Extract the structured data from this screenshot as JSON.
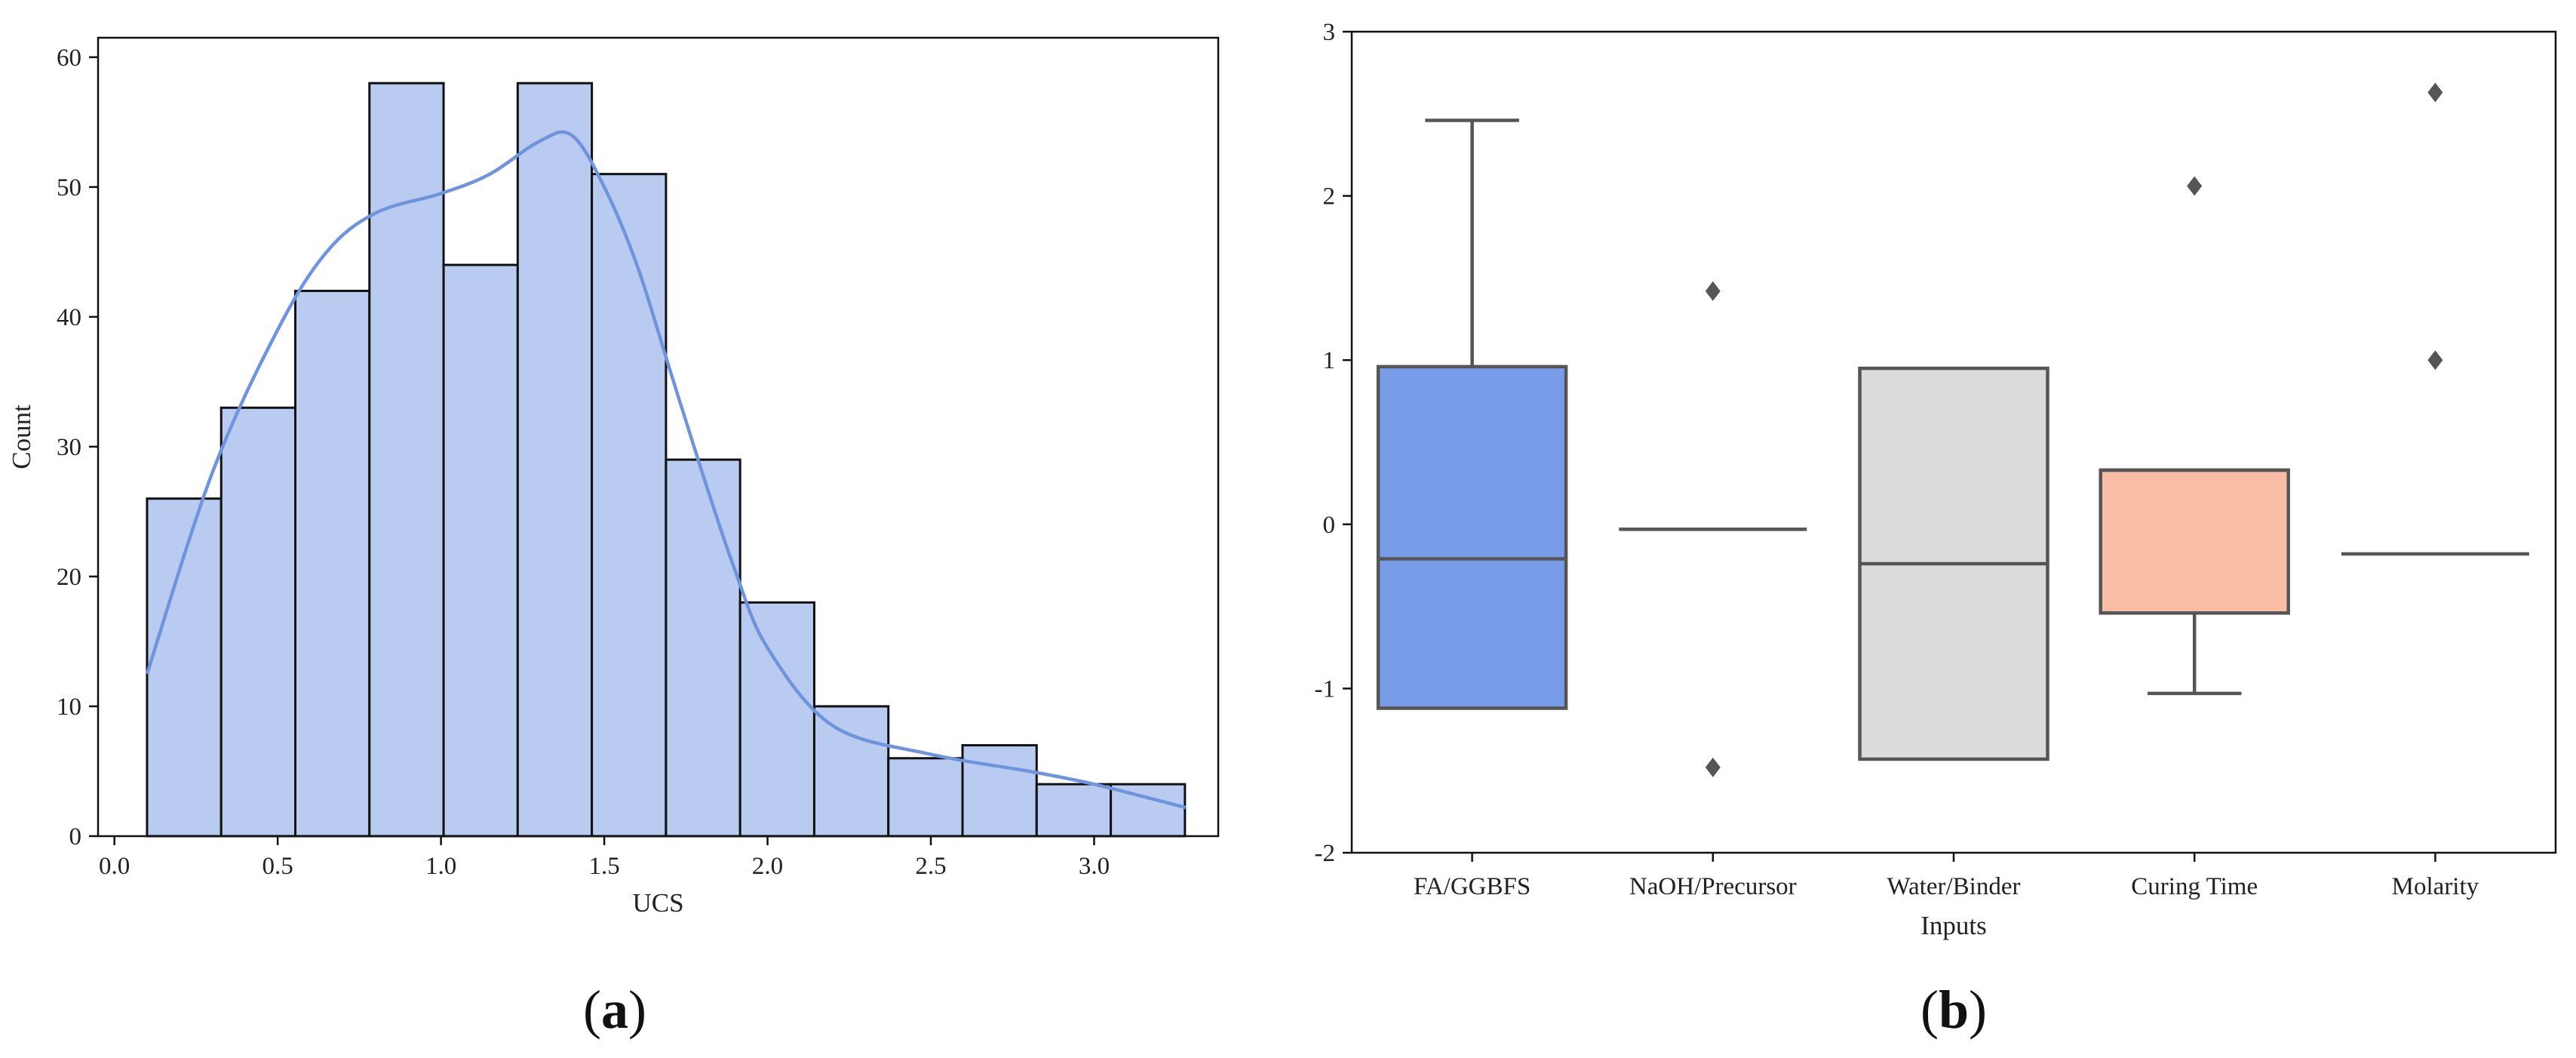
{
  "chart_data": [
    {
      "type": "bar",
      "subtype": "histogram-with-kde",
      "panel_label": {
        "open": "(",
        "letter": "a",
        "close": ")"
      },
      "xlabel": "UCS",
      "ylabel": "Count",
      "xlim": [
        -0.05,
        3.38
      ],
      "ylim": [
        0,
        61.5
      ],
      "xticks": [
        0.0,
        0.5,
        1.0,
        1.5,
        2.0,
        2.5,
        3.0
      ],
      "xtick_labels": [
        "0.0",
        "0.5",
        "1.0",
        "1.5",
        "2.0",
        "2.5",
        "3.0"
      ],
      "yticks": [
        0,
        10,
        20,
        30,
        40,
        50,
        60
      ],
      "ytick_labels": [
        "0",
        "10",
        "20",
        "30",
        "40",
        "50",
        "60"
      ],
      "bin_start": 0.1,
      "bin_width": 0.227,
      "values": [
        26,
        33,
        42,
        58,
        44,
        58,
        51,
        29,
        18,
        10,
        6,
        7,
        4,
        4
      ],
      "kde": {
        "x": [
          0.1,
          0.3,
          0.5,
          0.65,
          0.8,
          1.0,
          1.15,
          1.3,
          1.4,
          1.5,
          1.6,
          1.7,
          1.8,
          1.9,
          2.0,
          2.2,
          2.5,
          2.8,
          3.0,
          3.28
        ],
        "y": [
          12.5,
          28,
          39,
          45,
          48,
          49.5,
          51,
          53.5,
          54,
          50,
          44,
          36,
          28,
          20.5,
          14.5,
          8.5,
          6.3,
          5,
          4,
          2.2
        ]
      },
      "colors": {
        "bar": "#b9cbf0",
        "edge": "#111111",
        "kde": "#7094dc"
      },
      "grid": false
    },
    {
      "type": "box",
      "panel_label": {
        "open": "(",
        "letter": "b",
        "close": ")"
      },
      "xlabel": "Inputs",
      "ylabel": "",
      "ylim": [
        -2,
        3
      ],
      "yticks": [
        -2,
        -1,
        0,
        1,
        2,
        3
      ],
      "ytick_labels": [
        "-2",
        "-1",
        "0",
        "1",
        "2",
        "3"
      ],
      "categories": [
        "FA/GGBFS",
        "NaOH/Precursor",
        "Water/Binder",
        "Curing Time",
        "Molarity"
      ],
      "boxes": [
        {
          "whislo": -1.12,
          "q1": -1.12,
          "med": -0.21,
          "q3": 0.96,
          "whishi": 2.46,
          "fliers": [],
          "color": "#789ce7"
        },
        {
          "whislo": -0.03,
          "q1": -0.03,
          "med": -0.03,
          "q3": -0.03,
          "whishi": -0.03,
          "fliers": [
            1.42,
            -1.48
          ],
          "color": "#c7d6f2"
        },
        {
          "whislo": -1.43,
          "q1": -1.43,
          "med": -0.24,
          "q3": 0.95,
          "whishi": 0.95,
          "fliers": [],
          "color": "#dcdcdc"
        },
        {
          "whislo": -1.03,
          "q1": -0.54,
          "med": 0.33,
          "q3": 0.33,
          "whishi": 0.33,
          "fliers": [
            2.06
          ],
          "color": "#f9bca5"
        },
        {
          "whislo": -0.18,
          "q1": -0.18,
          "med": -0.18,
          "q3": -0.18,
          "whishi": -0.18,
          "fliers": [
            2.63,
            1.0
          ],
          "color": "#f2c8b8"
        }
      ],
      "colors": {
        "line": "#555555"
      },
      "grid": false
    }
  ]
}
